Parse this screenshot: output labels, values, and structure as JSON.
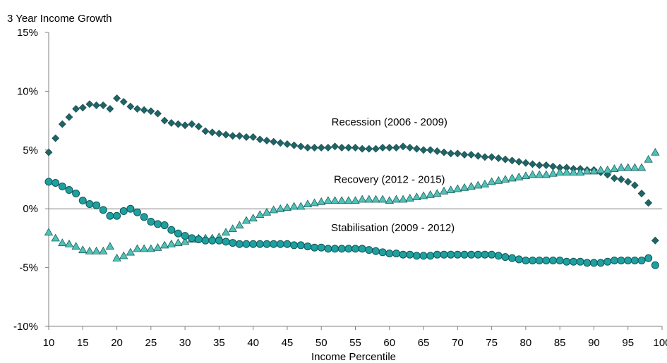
{
  "chart_data": {
    "type": "scatter",
    "ylabel": "3 Year Income Growth",
    "xlabel": "Income Percentile",
    "xlim": [
      10,
      100
    ],
    "ylim": [
      -10,
      15
    ],
    "x_ticks": [
      "10",
      "15",
      "20",
      "25",
      "30",
      "35",
      "40",
      "45",
      "50",
      "55",
      "60",
      "65",
      "70",
      "75",
      "80",
      "85",
      "90",
      "95",
      "100"
    ],
    "y_ticks": [
      "15%",
      "10%",
      "5%",
      "0%",
      "-5%",
      "-10%"
    ],
    "grid": false,
    "legend": "none",
    "x": [
      10,
      11,
      12,
      13,
      14,
      15,
      16,
      17,
      18,
      19,
      20,
      21,
      22,
      23,
      24,
      25,
      26,
      27,
      28,
      29,
      30,
      31,
      32,
      33,
      34,
      35,
      36,
      37,
      38,
      39,
      40,
      41,
      42,
      43,
      44,
      45,
      46,
      47,
      48,
      49,
      50,
      51,
      52,
      53,
      54,
      55,
      56,
      57,
      58,
      59,
      60,
      61,
      62,
      63,
      64,
      65,
      66,
      67,
      68,
      69,
      70,
      71,
      72,
      73,
      74,
      75,
      76,
      77,
      78,
      79,
      80,
      81,
      82,
      83,
      84,
      85,
      86,
      87,
      88,
      89,
      90,
      91,
      92,
      93,
      94,
      95,
      96,
      97,
      98,
      99
    ],
    "series": [
      {
        "label": "Recession (2006 - 2009)",
        "marker": "diamond",
        "color": "#1f6466",
        "values": [
          4.8,
          6.0,
          7.2,
          7.8,
          8.5,
          8.6,
          8.9,
          8.8,
          8.8,
          8.5,
          9.4,
          9.1,
          8.7,
          8.5,
          8.4,
          8.3,
          8.1,
          7.5,
          7.3,
          7.2,
          7.1,
          7.2,
          7.0,
          6.6,
          6.5,
          6.4,
          6.3,
          6.2,
          6.2,
          6.1,
          6.1,
          5.9,
          5.8,
          5.7,
          5.6,
          5.5,
          5.4,
          5.3,
          5.2,
          5.2,
          5.2,
          5.2,
          5.3,
          5.2,
          5.2,
          5.2,
          5.1,
          5.1,
          5.1,
          5.2,
          5.2,
          5.2,
          5.3,
          5.2,
          5.1,
          5.0,
          5.0,
          4.9,
          4.8,
          4.7,
          4.7,
          4.6,
          4.6,
          4.5,
          4.4,
          4.4,
          4.3,
          4.2,
          4.1,
          4.0,
          3.9,
          3.8,
          3.7,
          3.7,
          3.6,
          3.5,
          3.5,
          3.4,
          3.4,
          3.3,
          3.3,
          3.1,
          2.9,
          2.6,
          2.5,
          2.3,
          2.0,
          1.3,
          0.5,
          -2.7
        ]
      },
      {
        "label": "Recovery (2012 - 2015)",
        "marker": "triangle",
        "color": "#4fc1b9",
        "values": [
          -2.0,
          -2.5,
          -2.9,
          -3.0,
          -3.2,
          -3.5,
          -3.6,
          -3.6,
          -3.6,
          -3.2,
          -4.2,
          -4.0,
          -3.7,
          -3.4,
          -3.4,
          -3.4,
          -3.3,
          -3.1,
          -3.0,
          -2.9,
          -2.8,
          -2.6,
          -2.5,
          -2.5,
          -2.5,
          -2.4,
          -2.0,
          -1.7,
          -1.4,
          -1.0,
          -0.8,
          -0.5,
          -0.3,
          -0.1,
          0.0,
          0.1,
          0.2,
          0.2,
          0.4,
          0.5,
          0.6,
          0.7,
          0.7,
          0.7,
          0.7,
          0.7,
          0.8,
          0.8,
          0.8,
          0.8,
          0.7,
          0.8,
          0.8,
          0.9,
          1.0,
          1.1,
          1.2,
          1.3,
          1.5,
          1.6,
          1.7,
          1.8,
          1.9,
          2.0,
          2.1,
          2.3,
          2.4,
          2.5,
          2.6,
          2.7,
          2.8,
          2.9,
          2.9,
          2.9,
          3.0,
          3.1,
          3.1,
          3.1,
          3.1,
          3.2,
          3.2,
          3.3,
          3.3,
          3.4,
          3.5,
          3.5,
          3.5,
          3.5,
          4.2,
          4.8
        ]
      },
      {
        "label": "Stabilisation (2009 - 2012)",
        "marker": "circle",
        "color": "#1fa0a0",
        "values": [
          2.3,
          2.2,
          1.9,
          1.6,
          1.3,
          0.7,
          0.4,
          0.3,
          -0.1,
          -0.6,
          -0.6,
          -0.2,
          0.0,
          -0.3,
          -0.7,
          -1.1,
          -1.3,
          -1.4,
          -1.8,
          -2.1,
          -2.3,
          -2.5,
          -2.6,
          -2.7,
          -2.7,
          -2.7,
          -2.8,
          -2.9,
          -3.0,
          -3.0,
          -3.0,
          -3.0,
          -3.0,
          -3.0,
          -3.0,
          -3.0,
          -3.1,
          -3.1,
          -3.2,
          -3.3,
          -3.3,
          -3.4,
          -3.4,
          -3.4,
          -3.4,
          -3.4,
          -3.4,
          -3.5,
          -3.6,
          -3.7,
          -3.8,
          -3.8,
          -3.9,
          -3.9,
          -4.0,
          -4.0,
          -4.0,
          -3.9,
          -3.9,
          -3.9,
          -3.9,
          -3.9,
          -3.9,
          -3.9,
          -3.9,
          -3.9,
          -4.0,
          -4.1,
          -4.2,
          -4.3,
          -4.4,
          -4.4,
          -4.4,
          -4.4,
          -4.4,
          -4.4,
          -4.5,
          -4.5,
          -4.5,
          -4.6,
          -4.6,
          -4.6,
          -4.5,
          -4.4,
          -4.4,
          -4.4,
          -4.4,
          -4.4,
          -4.2,
          -4.8
        ]
      }
    ],
    "annotations": [
      {
        "text": "Recession (2006 - 2009)",
        "x": 60,
        "y": 7.1
      },
      {
        "text": "Recovery (2012 - 2015)",
        "x": 60,
        "y": 2.2
      },
      {
        "text": "Stabilisation (2009 - 2012)",
        "x": 60.5,
        "y": -1.9
      }
    ]
  }
}
